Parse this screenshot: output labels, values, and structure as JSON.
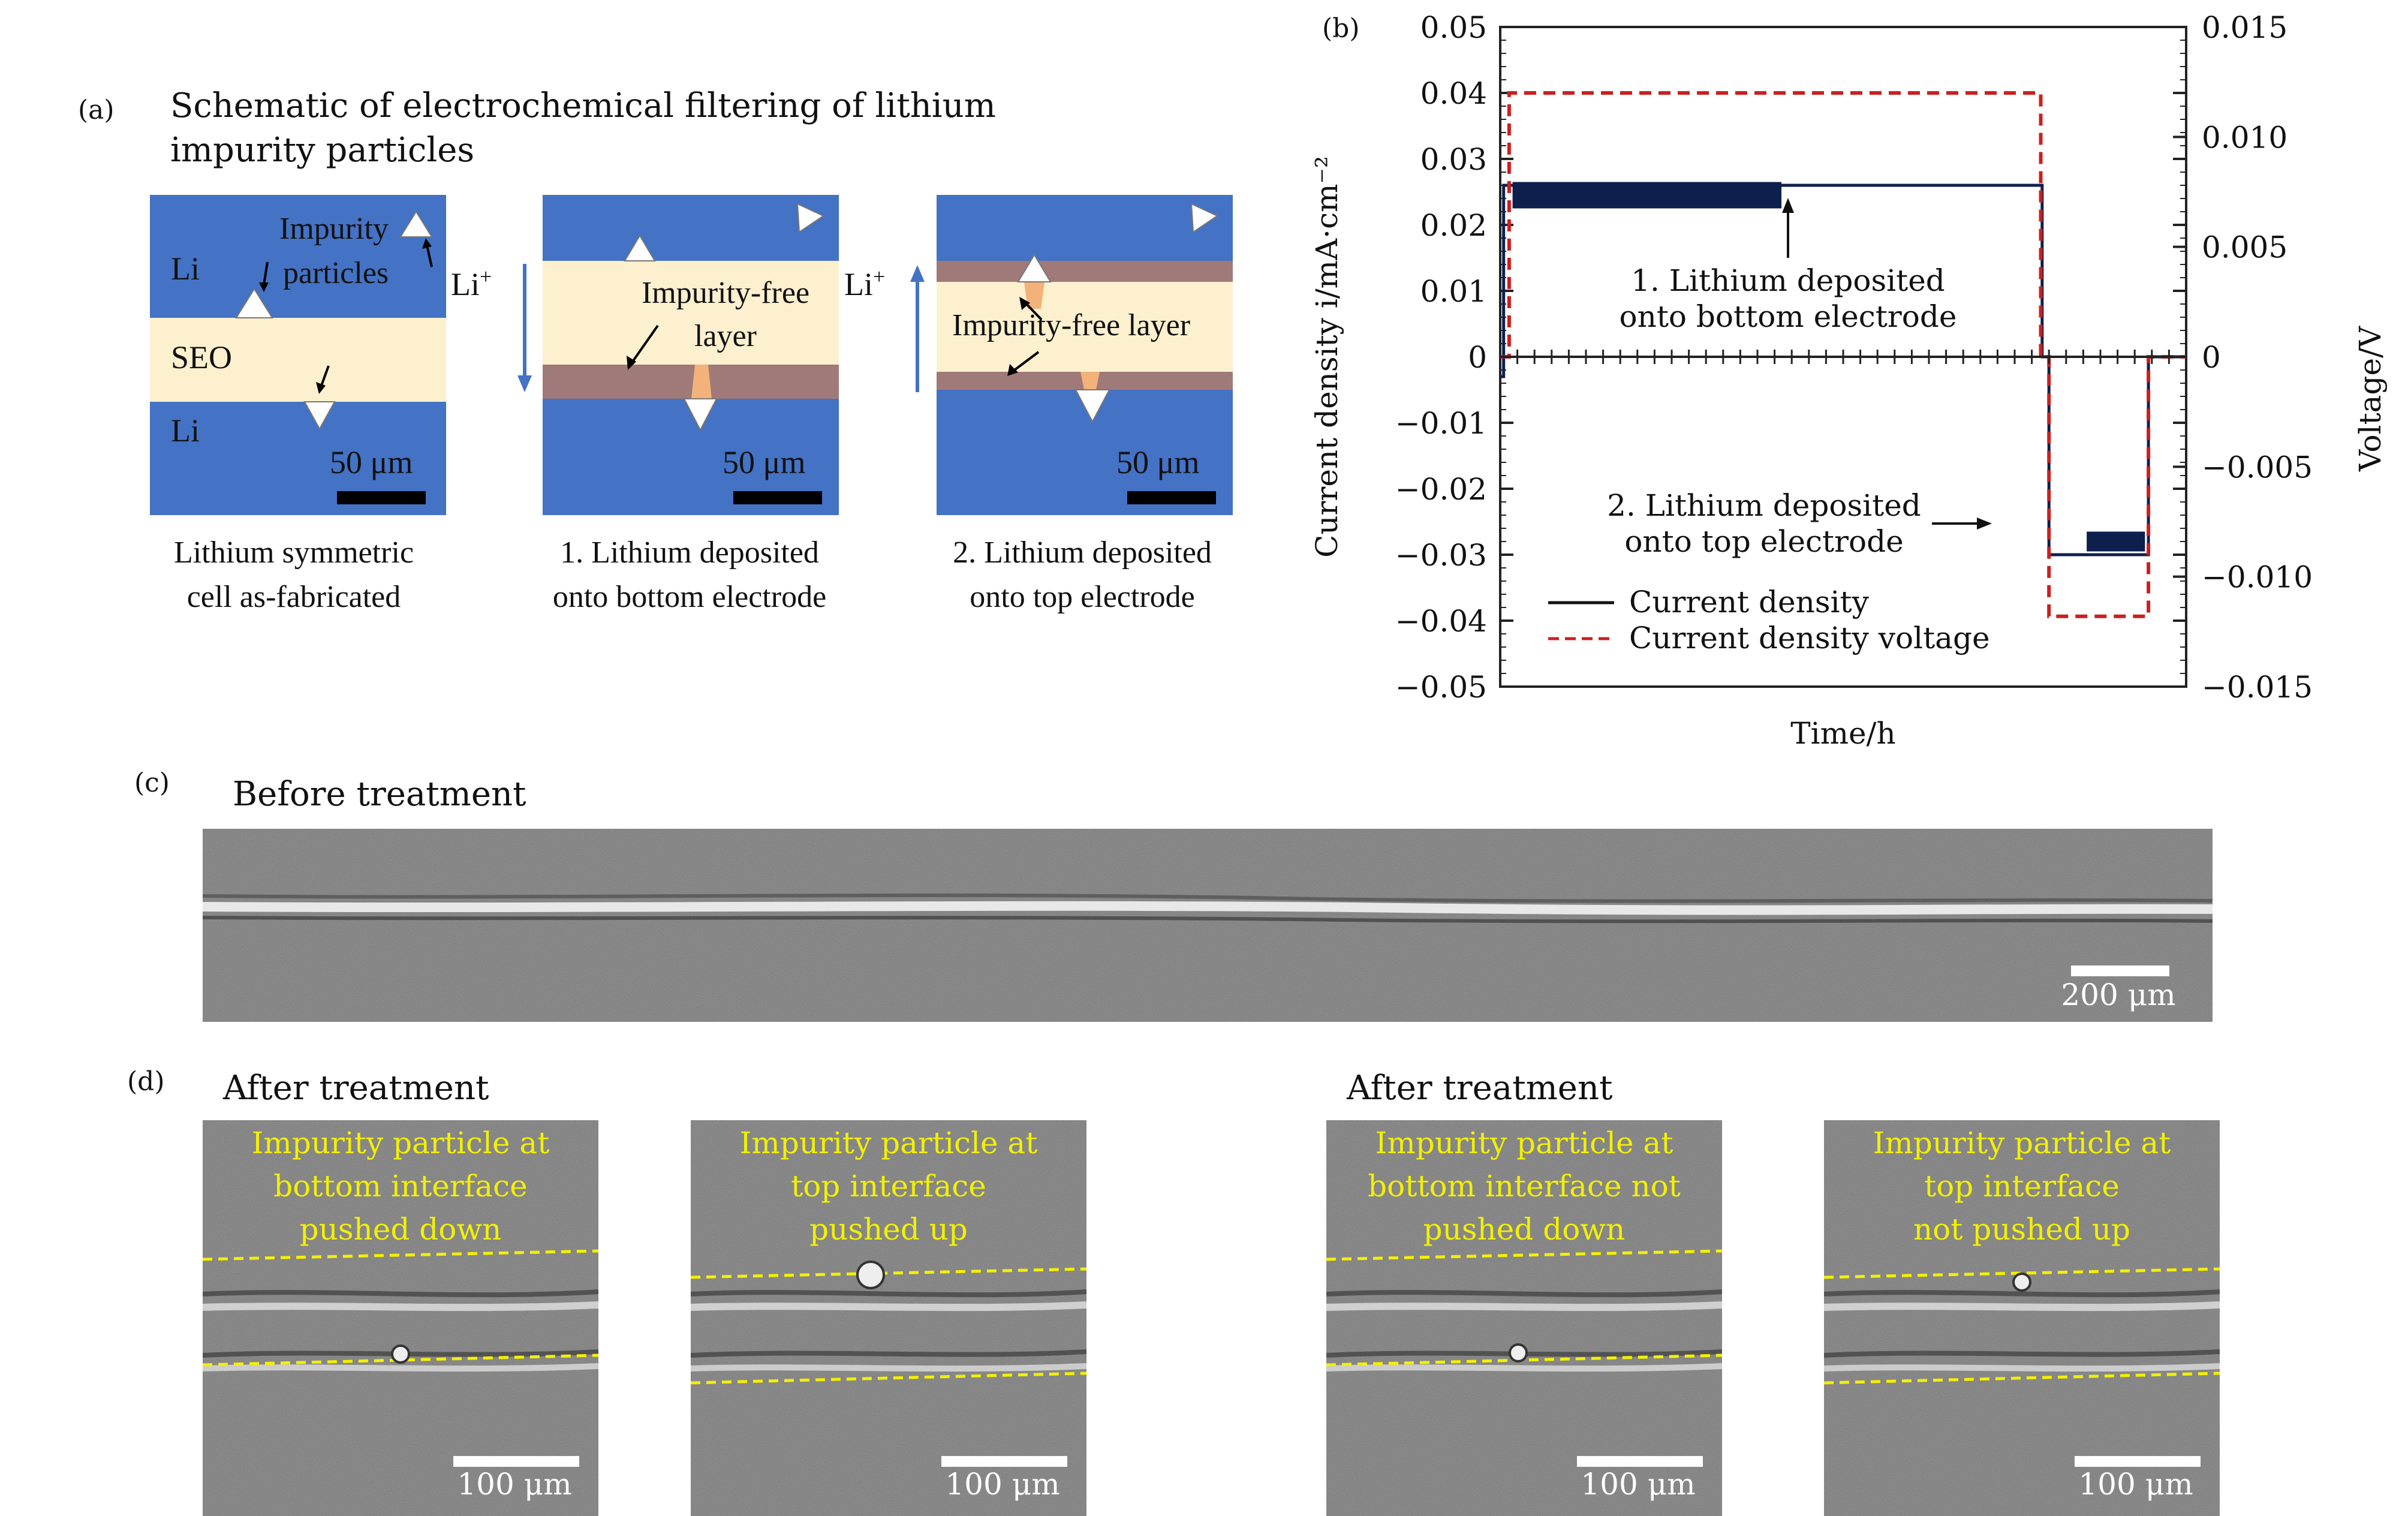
{
  "panel_a": {
    "letter": "(a)",
    "title_line1": "Schematic of electrochemical filtering of lithium",
    "title_line2": "impurity particles",
    "cell1": {
      "li_top": "Li",
      "seo": "SEO",
      "li_bottom": "Li",
      "impurity_line1": "Impurity",
      "impurity_line2": "particles",
      "scale": "50 μm",
      "caption_line1": "Lithium symmetric",
      "caption_line2": "cell as-fabricated"
    },
    "cell2": {
      "free_line1": "Impurity-free",
      "free_line2": "layer",
      "scale": "50 μm",
      "caption_line1": "1. Lithium deposited",
      "caption_line2": "onto bottom electrode"
    },
    "cell3": {
      "free_label": "Impurity-free layer",
      "scale": "50 μm",
      "caption_line1": "2. Lithium deposited",
      "caption_line2": "onto top electrode"
    },
    "li_plus": "Li",
    "li_plus_sup": "+",
    "colors": {
      "lithium": "#4472c4",
      "seo": "#fdf0cf",
      "impurity_free": "#a07a78",
      "filament": "#f2b27a",
      "arrow": "#4472c4"
    }
  },
  "panel_b": {
    "letter": "(b)",
    "annotation1_line1": "1. Lithium deposited",
    "annotation1_line2": "onto bottom electrode",
    "annotation2_line1": "2. Lithium deposited",
    "annotation2_line2": "onto top electrode",
    "colors": {
      "current": "#0d1f4d",
      "voltage": "#cc1f1f"
    }
  },
  "chart_data": {
    "type": "line",
    "xlabel": "Time/h",
    "ylabel": "Current density i/mA·cm⁻²",
    "ylabel_right": "Voltage/V",
    "ylim": [
      -0.05,
      0.05
    ],
    "ylim_right": [
      -0.015,
      0.015
    ],
    "yticks": [
      "0.05",
      "0.04",
      "0.03",
      "0.02",
      "0.01",
      "0",
      "−0.01",
      "−0.02",
      "−0.03",
      "−0.04",
      "−0.05"
    ],
    "yticks_right": [
      "0.015",
      "0.010",
      "0.005",
      "0",
      "−0.005",
      "−0.010",
      "−0.015"
    ],
    "x_note": "time axis unlabeled; x given as fraction of the plotted time span",
    "series": [
      {
        "name": "Current density",
        "style": "solid",
        "axis": "left",
        "x": [
          0,
          0.005,
          0.005,
          0.015,
          0.015,
          0.79,
          0.79,
          0.8,
          0.8,
          0.945,
          0.945,
          1.0
        ],
        "y": [
          -0.003,
          -0.003,
          0.026,
          0.026,
          0.026,
          0.026,
          0,
          0,
          -0.03,
          -0.03,
          0,
          0
        ]
      },
      {
        "name": "Current density voltage",
        "style": "dashed",
        "axis": "right",
        "x": [
          0,
          0.013,
          0.013,
          0.788,
          0.788,
          0.8,
          0.8,
          0.945,
          0.945,
          1.0
        ],
        "y": [
          0,
          0,
          0.012,
          0.012,
          0,
          0,
          -0.0118,
          -0.0118,
          0,
          0
        ]
      }
    ],
    "legend_position": "bottom-left"
  },
  "panel_c": {
    "letter": "(c)",
    "title": "Before treatment",
    "scale": "200 μm"
  },
  "panel_d": {
    "letter": "(d)",
    "title_left": "After treatment",
    "title_right": "After treatment",
    "images": [
      {
        "line1": "Impurity particle at",
        "line2": "bottom interface",
        "line3": "pushed down",
        "scale": "100 μm"
      },
      {
        "line1": "Impurity particle at",
        "line2": "top interface",
        "line3": "pushed up",
        "scale": "100 μm"
      },
      {
        "line1": "Impurity particle at",
        "line2": "bottom interface not",
        "line3": "pushed down",
        "scale": "100 μm"
      },
      {
        "line1": "Impurity particle at",
        "line2": "top interface",
        "line3": "not pushed up",
        "scale": "100 μm"
      }
    ],
    "label_color": "#f2f000"
  }
}
